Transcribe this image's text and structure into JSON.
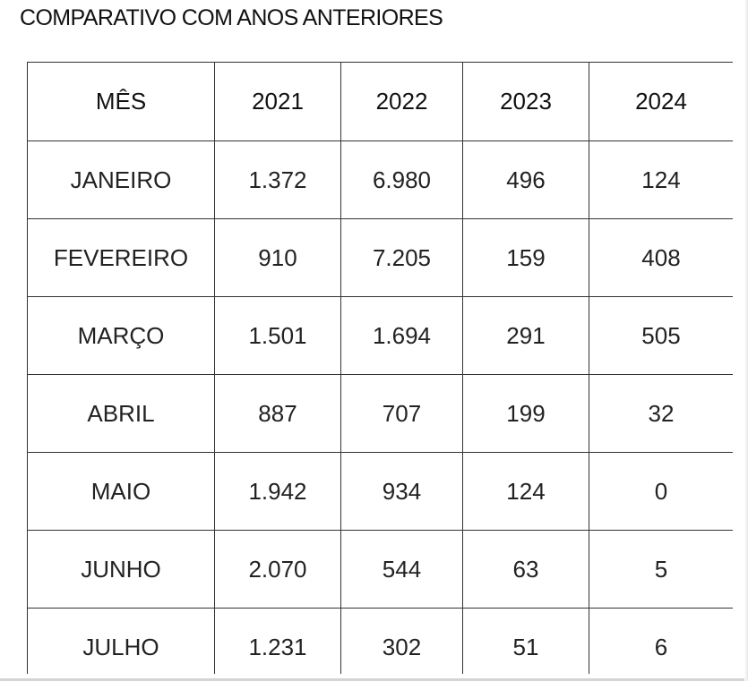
{
  "title": "COMPARATIVO COM ANOS ANTERIORES",
  "table": {
    "headers": [
      "MÊS",
      "2021",
      "2022",
      "2023",
      "2024"
    ],
    "rows": [
      [
        "JANEIRO",
        "1.372",
        "6.980",
        "496",
        "124"
      ],
      [
        "FEVEREIRO",
        "910",
        "7.205",
        "159",
        "408"
      ],
      [
        "MARÇO",
        "1.501",
        "1.694",
        "291",
        "505"
      ],
      [
        "ABRIL",
        "887",
        "707",
        "199",
        "32"
      ],
      [
        "MAIO",
        "1.942",
        "934",
        "124",
        "0"
      ],
      [
        "JUNHO",
        "2.070",
        "544",
        "63",
        "5"
      ],
      [
        "JULHO",
        "1.231",
        "302",
        "51",
        "6"
      ]
    ]
  }
}
